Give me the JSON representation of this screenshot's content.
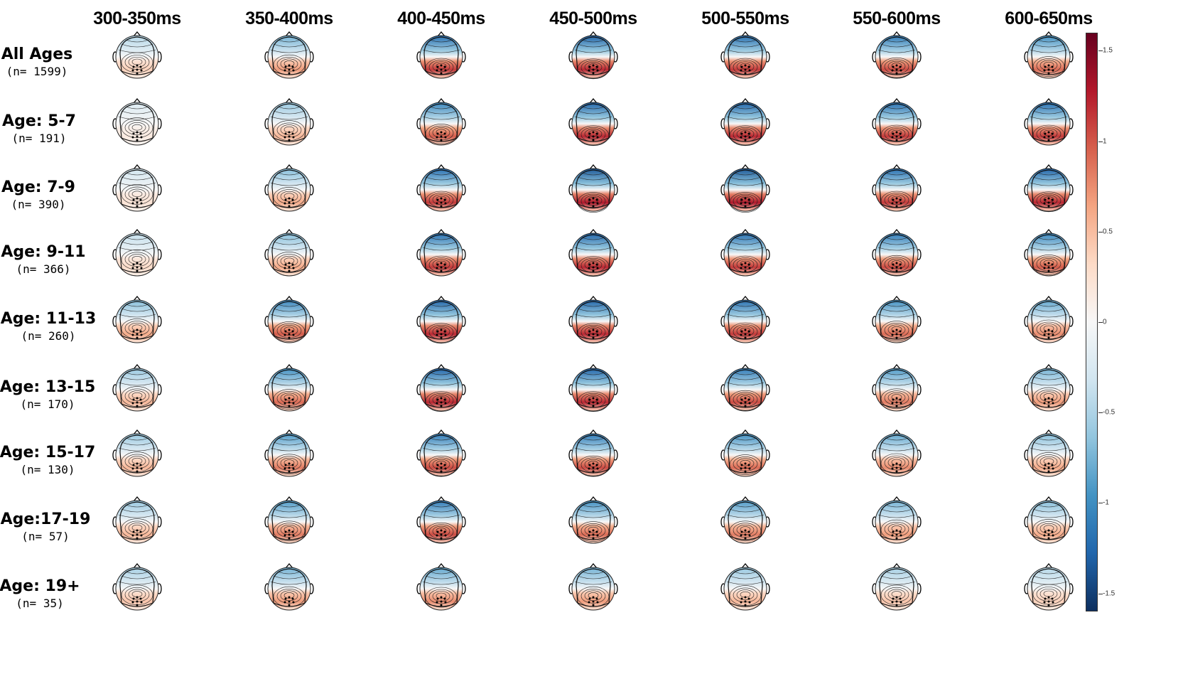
{
  "columns": [
    "300-350ms",
    "350-400ms",
    "400-450ms",
    "450-500ms",
    "500-550ms",
    "550-600ms",
    "600-650ms"
  ],
  "rows": [
    {
      "label": "All Ages",
      "n": "(n= 1599)"
    },
    {
      "label": "Age: 5-7",
      "n": "(n= 191)"
    },
    {
      "label": "Age: 7-9",
      "n": "(n= 390)"
    },
    {
      "label": "Age: 9-11",
      "n": "(n= 366)"
    },
    {
      "label": "Age: 11-13",
      "n": "(n= 260)"
    },
    {
      "label": "Age: 13-15",
      "n": "(n= 170)"
    },
    {
      "label": "Age: 15-17",
      "n": "(n= 130)"
    },
    {
      "label": "Age:17-19",
      "n": "(n= 57)"
    },
    {
      "label": "Age: 19+",
      "n": "(n= 35)"
    }
  ],
  "colorbar": {
    "ticks": [
      "1.5",
      "1",
      "0.5",
      "0",
      "-0.5",
      "-1",
      "-1.5"
    ],
    "tick_values": [
      1.5,
      1,
      0.5,
      0,
      -0.5,
      -1,
      -1.5
    ],
    "range": [
      -1.6,
      1.6
    ],
    "colors": [
      "#0d2f5f",
      "#2166ac",
      "#4393c3",
      "#92c5de",
      "#d1e5f0",
      "#f7f7f7",
      "#fddbc7",
      "#f4a582",
      "#d6604d",
      "#b2182b",
      "#67001f"
    ]
  },
  "topomap_intensity": [
    [
      0.25,
      0.45,
      0.75,
      0.8,
      0.75,
      0.7,
      0.6
    ],
    [
      0.1,
      0.35,
      0.65,
      0.8,
      0.8,
      0.75,
      0.75
    ],
    [
      0.15,
      0.4,
      0.75,
      0.85,
      0.85,
      0.75,
      0.8
    ],
    [
      0.2,
      0.4,
      0.75,
      0.8,
      0.75,
      0.7,
      0.65
    ],
    [
      0.4,
      0.65,
      0.8,
      0.8,
      0.75,
      0.6,
      0.5
    ],
    [
      0.35,
      0.6,
      0.8,
      0.8,
      0.7,
      0.55,
      0.45
    ],
    [
      0.35,
      0.55,
      0.7,
      0.7,
      0.6,
      0.5,
      0.4
    ],
    [
      0.35,
      0.55,
      0.7,
      0.6,
      0.55,
      0.45,
      0.4
    ],
    [
      0.3,
      0.45,
      0.5,
      0.45,
      0.35,
      0.3,
      0.25
    ]
  ]
}
